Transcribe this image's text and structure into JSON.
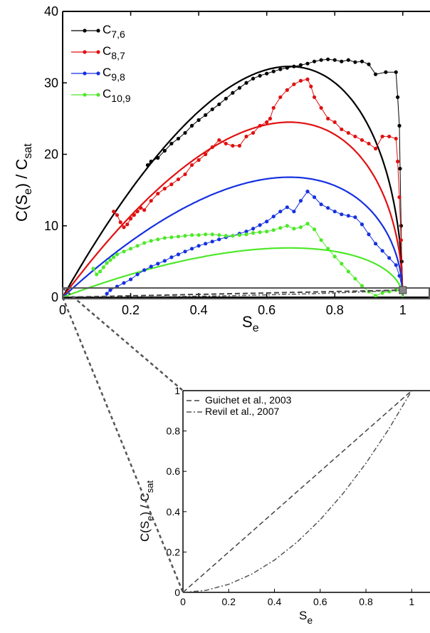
{
  "chart_data": [
    {
      "type": "line",
      "xlabel": {
        "main": "S",
        "sub": "e"
      },
      "ylabel": {
        "parts": [
          "C(S",
          "e",
          ") / C",
          "sat"
        ]
      },
      "xlim": [
        0,
        1.08
      ],
      "ylim": [
        0,
        40
      ],
      "xticks": [
        "0",
        "0.2",
        "0.4",
        "0.6",
        "0.8",
        "1"
      ],
      "yticks": [
        "0",
        "10",
        "20",
        "30",
        "40"
      ],
      "grid": false,
      "legend_position": "top-left",
      "series": [
        {
          "name": "C",
          "sub": "7,6",
          "color": "#000000",
          "fit_peak": 32.3,
          "points": [
            [
              0.25,
              18.5
            ],
            [
              0.26,
              19.0
            ],
            [
              0.28,
              19.5
            ],
            [
              0.3,
              20.5
            ],
            [
              0.32,
              21.5
            ],
            [
              0.34,
              22.2
            ],
            [
              0.36,
              23.0
            ],
            [
              0.38,
              24.0
            ],
            [
              0.4,
              24.8
            ],
            [
              0.42,
              25.5
            ],
            [
              0.44,
              26.3
            ],
            [
              0.46,
              27.0
            ],
            [
              0.48,
              27.8
            ],
            [
              0.5,
              28.6
            ],
            [
              0.52,
              29.3
            ],
            [
              0.54,
              30.0
            ],
            [
              0.56,
              30.6
            ],
            [
              0.58,
              31.0
            ],
            [
              0.6,
              31.3
            ],
            [
              0.62,
              31.6
            ],
            [
              0.64,
              31.9
            ],
            [
              0.66,
              32.1
            ],
            [
              0.68,
              32.3
            ],
            [
              0.7,
              32.5
            ],
            [
              0.72,
              32.7
            ],
            [
              0.74,
              33.0
            ],
            [
              0.76,
              33.2
            ],
            [
              0.78,
              33.3
            ],
            [
              0.8,
              33.2
            ],
            [
              0.82,
              33.0
            ],
            [
              0.84,
              33.2
            ],
            [
              0.86,
              32.9
            ],
            [
              0.88,
              33.0
            ],
            [
              0.9,
              32.6
            ],
            [
              0.92,
              31.2
            ],
            [
              0.95,
              31.5
            ],
            [
              0.98,
              31.5
            ],
            [
              0.985,
              28.0
            ],
            [
              0.99,
              24.0
            ],
            [
              0.992,
              18.0
            ],
            [
              0.995,
              10.0
            ],
            [
              0.997,
              5.0
            ],
            [
              1.0,
              1.0
            ]
          ]
        },
        {
          "name": "C",
          "sub": "8,7",
          "color": "#e01010",
          "fit_peak": 24.5,
          "points": [
            [
              0.15,
              12.0
            ],
            [
              0.16,
              11.5
            ],
            [
              0.17,
              10.5
            ],
            [
              0.18,
              9.8
            ],
            [
              0.19,
              10.2
            ],
            [
              0.2,
              11.0
            ],
            [
              0.21,
              11.5
            ],
            [
              0.22,
              12.0
            ],
            [
              0.23,
              12.5
            ],
            [
              0.24,
              12.2
            ],
            [
              0.26,
              13.5
            ],
            [
              0.28,
              14.5
            ],
            [
              0.3,
              15.2
            ],
            [
              0.32,
              15.8
            ],
            [
              0.34,
              16.5
            ],
            [
              0.36,
              17.2
            ],
            [
              0.38,
              18.5
            ],
            [
              0.4,
              19.2
            ],
            [
              0.42,
              20.0
            ],
            [
              0.44,
              21.0
            ],
            [
              0.46,
              22.0
            ],
            [
              0.48,
              21.5
            ],
            [
              0.5,
              21.2
            ],
            [
              0.52,
              21.2
            ],
            [
              0.54,
              22.5
            ],
            [
              0.56,
              23.0
            ],
            [
              0.58,
              24.0
            ],
            [
              0.6,
              24.5
            ],
            [
              0.61,
              25.0
            ],
            [
              0.62,
              26.5
            ],
            [
              0.64,
              28.0
            ],
            [
              0.66,
              29.0
            ],
            [
              0.68,
              29.8
            ],
            [
              0.7,
              30.3
            ],
            [
              0.72,
              30.5
            ],
            [
              0.73,
              29.5
            ],
            [
              0.74,
              28.0
            ],
            [
              0.76,
              26.5
            ],
            [
              0.78,
              25.0
            ],
            [
              0.8,
              24.5
            ],
            [
              0.82,
              23.5
            ],
            [
              0.84,
              23.0
            ],
            [
              0.86,
              22.5
            ],
            [
              0.88,
              22.0
            ],
            [
              0.9,
              21.5
            ],
            [
              0.92,
              20.8
            ],
            [
              0.94,
              22.5
            ],
            [
              0.96,
              22.5
            ],
            [
              0.98,
              22.2
            ],
            [
              0.985,
              19.0
            ],
            [
              0.99,
              14.0
            ],
            [
              0.995,
              8.0
            ],
            [
              1.0,
              1.0
            ]
          ]
        },
        {
          "name": "C",
          "sub": "9,8",
          "color": "#1530e0",
          "fit_peak": 16.8,
          "points": [
            [
              0.13,
              0.5
            ],
            [
              0.14,
              1.0
            ],
            [
              0.16,
              1.5
            ],
            [
              0.18,
              2.0
            ],
            [
              0.2,
              2.5
            ],
            [
              0.22,
              3.2
            ],
            [
              0.24,
              3.8
            ],
            [
              0.26,
              4.3
            ],
            [
              0.28,
              4.7
            ],
            [
              0.3,
              5.1
            ],
            [
              0.32,
              5.6
            ],
            [
              0.34,
              6.0
            ],
            [
              0.36,
              6.4
            ],
            [
              0.38,
              6.8
            ],
            [
              0.4,
              7.2
            ],
            [
              0.42,
              7.5
            ],
            [
              0.44,
              7.8
            ],
            [
              0.46,
              8.1
            ],
            [
              0.48,
              8.4
            ],
            [
              0.5,
              8.6
            ],
            [
              0.52,
              8.9
            ],
            [
              0.54,
              9.2
            ],
            [
              0.56,
              9.6
            ],
            [
              0.58,
              10.1
            ],
            [
              0.6,
              10.6
            ],
            [
              0.62,
              11.3
            ],
            [
              0.64,
              12.0
            ],
            [
              0.66,
              12.6
            ],
            [
              0.68,
              12.0
            ],
            [
              0.7,
              13.5
            ],
            [
              0.72,
              14.8
            ],
            [
              0.74,
              14.0
            ],
            [
              0.76,
              13.0
            ],
            [
              0.78,
              12.5
            ],
            [
              0.8,
              12.0
            ],
            [
              0.82,
              11.6
            ],
            [
              0.84,
              11.4
            ],
            [
              0.86,
              11.2
            ],
            [
              0.88,
              10.2
            ],
            [
              0.9,
              8.8
            ],
            [
              0.92,
              7.5
            ],
            [
              0.94,
              6.5
            ],
            [
              0.96,
              5.5
            ],
            [
              0.98,
              4.5
            ],
            [
              0.99,
              3.0
            ],
            [
              1.0,
              1.0
            ]
          ]
        },
        {
          "name": "C",
          "sub": "10,9",
          "color": "#4ee82a",
          "fit_peak": 6.9,
          "points": [
            [
              0.09,
              4.0
            ],
            [
              0.1,
              3.2
            ],
            [
              0.11,
              3.6
            ],
            [
              0.12,
              4.2
            ],
            [
              0.13,
              4.8
            ],
            [
              0.14,
              5.2
            ],
            [
              0.15,
              5.6
            ],
            [
              0.16,
              6.0
            ],
            [
              0.18,
              6.4
            ],
            [
              0.2,
              6.8
            ],
            [
              0.22,
              7.2
            ],
            [
              0.24,
              7.6
            ],
            [
              0.26,
              7.9
            ],
            [
              0.28,
              8.1
            ],
            [
              0.3,
              8.3
            ],
            [
              0.32,
              8.4
            ],
            [
              0.34,
              8.5
            ],
            [
              0.36,
              8.6
            ],
            [
              0.38,
              8.7
            ],
            [
              0.4,
              8.7
            ],
            [
              0.42,
              8.8
            ],
            [
              0.44,
              8.8
            ],
            [
              0.46,
              8.7
            ],
            [
              0.48,
              8.6
            ],
            [
              0.5,
              8.6
            ],
            [
              0.52,
              8.7
            ],
            [
              0.54,
              8.8
            ],
            [
              0.56,
              9.0
            ],
            [
              0.58,
              9.1
            ],
            [
              0.6,
              9.2
            ],
            [
              0.62,
              9.4
            ],
            [
              0.64,
              9.7
            ],
            [
              0.66,
              10.0
            ],
            [
              0.68,
              9.6
            ],
            [
              0.7,
              9.8
            ],
            [
              0.72,
              10.3
            ],
            [
              0.74,
              9.5
            ],
            [
              0.76,
              8.0
            ],
            [
              0.78,
              6.8
            ],
            [
              0.8,
              5.7
            ],
            [
              0.82,
              4.7
            ],
            [
              0.84,
              3.6
            ],
            [
              0.86,
              2.6
            ],
            [
              0.88,
              1.6
            ],
            [
              0.9,
              0.8
            ],
            [
              0.92,
              0.2
            ],
            [
              0.94,
              0.6
            ],
            [
              0.96,
              0.8
            ],
            [
              0.98,
              1.0
            ],
            [
              1.0,
              1.2
            ]
          ]
        }
      ]
    },
    {
      "type": "line",
      "inset": true,
      "xlabel": {
        "main": "S",
        "sub": "e"
      },
      "ylabel": {
        "parts": [
          "C(S",
          "e",
          ") / C",
          "sat"
        ]
      },
      "xlim": [
        0,
        1.08
      ],
      "ylim": [
        0,
        1
      ],
      "xticks": [
        "0",
        "0.2",
        "0.4",
        "0.6",
        "0.8",
        "1"
      ],
      "yticks": [
        "0",
        "0.2",
        "0.4",
        "0.6",
        "0.8",
        "1"
      ],
      "legend_position": "top-left",
      "series": [
        {
          "name": "Guichet et al., 2003",
          "style": "dashed",
          "color": "#444444",
          "x": [
            0,
            0.2,
            0.4,
            0.6,
            0.8,
            1.0
          ],
          "y": [
            0,
            0.2,
            0.4,
            0.6,
            0.8,
            1.0
          ]
        },
        {
          "name": "Revil et al., 2007",
          "style": "dash-dot",
          "color": "#555555",
          "x": [
            0,
            0.1,
            0.2,
            0.3,
            0.4,
            0.5,
            0.6,
            0.7,
            0.8,
            0.9,
            1.0
          ],
          "y": [
            0,
            0.01,
            0.04,
            0.09,
            0.16,
            0.25,
            0.36,
            0.49,
            0.64,
            0.81,
            1.0
          ]
        }
      ]
    }
  ]
}
